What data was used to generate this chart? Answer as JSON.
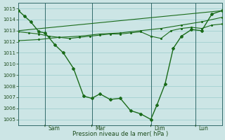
{
  "background_color": "#cce5e5",
  "grid_color": "#99cccc",
  "line_color": "#1a6b1a",
  "marker_color": "#1a6b1a",
  "xlabel": "Pression niveau de la mer( hPa )",
  "ylim": [
    1004.5,
    1015.5
  ],
  "yticks": [
    1005,
    1006,
    1007,
    1008,
    1009,
    1010,
    1011,
    1012,
    1013,
    1014,
    1015
  ],
  "xlim": [
    0,
    100
  ],
  "xtick_major": [
    13,
    36,
    65,
    87
  ],
  "xtick_labels": [
    "Sam",
    "Mar",
    "Dim",
    "Lun"
  ],
  "vline_positions": [
    13,
    36,
    65,
    87
  ],
  "series1_x": [
    0,
    3,
    6,
    10,
    13,
    18,
    22,
    27,
    32,
    36,
    40,
    45,
    50,
    55,
    60,
    65,
    68,
    72,
    76,
    80,
    85,
    90,
    95,
    100
  ],
  "series1_y": [
    1014.8,
    1014.3,
    1013.8,
    1012.9,
    1012.8,
    1011.7,
    1011.0,
    1009.6,
    1007.1,
    1006.9,
    1007.3,
    1006.8,
    1006.9,
    1005.8,
    1005.5,
    1005.0,
    1006.3,
    1008.2,
    1011.4,
    1012.5,
    1013.1,
    1013.0,
    1014.5,
    1014.8
  ],
  "series2_x": [
    0,
    5,
    10,
    15,
    20,
    25,
    30,
    35,
    40,
    45,
    50,
    55,
    60,
    65,
    70,
    75,
    80,
    85,
    90,
    95,
    100
  ],
  "series2_y": [
    1012.9,
    1012.8,
    1012.7,
    1012.5,
    1012.4,
    1012.3,
    1012.4,
    1012.5,
    1012.6,
    1012.7,
    1012.7,
    1012.8,
    1012.9,
    1012.5,
    1012.3,
    1013.0,
    1013.2,
    1013.3,
    1013.2,
    1013.5,
    1013.6
  ],
  "series3_x": [
    0,
    10,
    20,
    30,
    40,
    50,
    60,
    70,
    80,
    90,
    100
  ],
  "series3_y": [
    1012.1,
    1012.2,
    1012.4,
    1012.5,
    1012.7,
    1012.8,
    1013.0,
    1013.2,
    1013.5,
    1013.8,
    1014.2
  ],
  "series4_x": [
    0,
    100
  ],
  "series4_y": [
    1013.0,
    1014.8
  ]
}
